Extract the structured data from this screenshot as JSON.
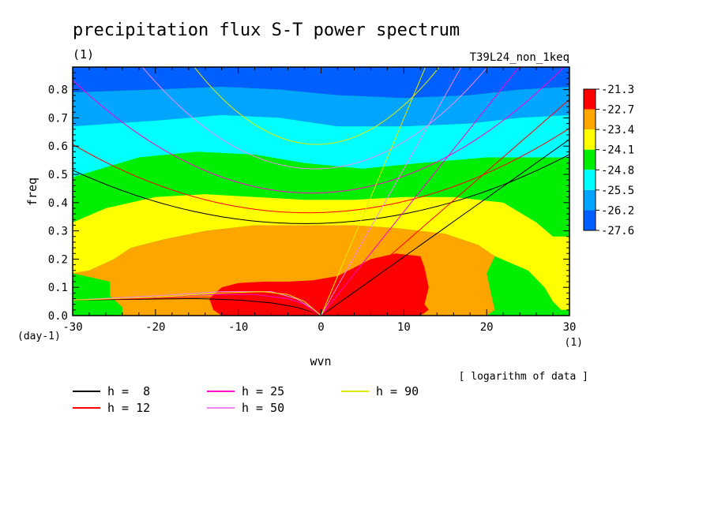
{
  "chart_data": {
    "type": "heatmap",
    "title": "precipitation flux S-T power spectrum",
    "subtitle_left": "(1)",
    "subtitle_right": "T39L24_non_1keq",
    "xlabel": "wvn",
    "ylabel": "freq",
    "x_unit": "(1)",
    "y_unit": "(day-1)",
    "xlim": [
      -30,
      30
    ],
    "ylim": [
      0,
      0.88
    ],
    "x_ticks": [
      -30,
      -20,
      -10,
      0,
      10,
      20,
      30
    ],
    "x_tick_labels": [
      "-30",
      "-20",
      "-10",
      "0",
      "10",
      "20",
      "30"
    ],
    "y_ticks": [
      0,
      0.1,
      0.2,
      0.3,
      0.4,
      0.5,
      0.6,
      0.7,
      0.8
    ],
    "y_tick_labels": [
      "0.0",
      "0.1",
      "0.2",
      "0.3",
      "0.4",
      "0.5",
      "0.6",
      "0.7",
      "0.8"
    ],
    "colorbar": {
      "labels": [
        "-21.3",
        "-22.7",
        "-23.4",
        "-24.1",
        "-24.8",
        "-25.5",
        "-26.2",
        "-27.6"
      ],
      "colors": [
        "#ff0000",
        "#ffa500",
        "#ffff00",
        "#00ee00",
        "#00ffff",
        "#00a5ff",
        "#0060ff"
      ],
      "caption": "[ logarithm of data ]"
    },
    "contour_levels": [
      {
        "value": "-26.2",
        "color": "#0060ff",
        "points": [
          [
            -30,
            0.88
          ],
          [
            30,
            0.88
          ],
          [
            30,
            0.81
          ],
          [
            24,
            0.8
          ],
          [
            18,
            0.78
          ],
          [
            10,
            0.77
          ],
          [
            2,
            0.78
          ],
          [
            -5,
            0.8
          ],
          [
            -12,
            0.81
          ],
          [
            -20,
            0.8
          ],
          [
            -30,
            0.79
          ]
        ]
      },
      {
        "value": "-25.5",
        "color": "#00a5ff",
        "points": [
          [
            -30,
            0.79
          ],
          [
            -20,
            0.8
          ],
          [
            -12,
            0.81
          ],
          [
            -5,
            0.8
          ],
          [
            2,
            0.78
          ],
          [
            10,
            0.77
          ],
          [
            18,
            0.78
          ],
          [
            24,
            0.8
          ],
          [
            30,
            0.81
          ],
          [
            30,
            0.71
          ],
          [
            24,
            0.7
          ],
          [
            18,
            0.68
          ],
          [
            10,
            0.67
          ],
          [
            2,
            0.67
          ],
          [
            -5,
            0.7
          ],
          [
            -12,
            0.71
          ],
          [
            -20,
            0.69
          ],
          [
            -30,
            0.67
          ]
        ]
      },
      {
        "value": "-24.8",
        "color": "#00ffff",
        "points": [
          [
            -30,
            0.67
          ],
          [
            -20,
            0.69
          ],
          [
            -12,
            0.71
          ],
          [
            -5,
            0.7
          ],
          [
            2,
            0.67
          ],
          [
            10,
            0.67
          ],
          [
            18,
            0.68
          ],
          [
            24,
            0.7
          ],
          [
            30,
            0.71
          ],
          [
            30,
            0.56
          ],
          [
            25,
            0.56
          ],
          [
            20,
            0.56
          ],
          [
            12,
            0.54
          ],
          [
            5,
            0.52
          ],
          [
            -2,
            0.54
          ],
          [
            -8,
            0.57
          ],
          [
            -15,
            0.58
          ],
          [
            -22,
            0.56
          ],
          [
            -30,
            0.49
          ]
        ]
      },
      {
        "value": "-24.1",
        "color": "#00ee00",
        "points": [
          [
            -30,
            0.49
          ],
          [
            -22,
            0.56
          ],
          [
            -15,
            0.58
          ],
          [
            -8,
            0.57
          ],
          [
            -2,
            0.54
          ],
          [
            5,
            0.52
          ],
          [
            12,
            0.54
          ],
          [
            20,
            0.56
          ],
          [
            25,
            0.56
          ],
          [
            30,
            0.56
          ],
          [
            30,
            0.28
          ],
          [
            28,
            0.28
          ],
          [
            26,
            0.33
          ],
          [
            22,
            0.4
          ],
          [
            16,
            0.42
          ],
          [
            10,
            0.42
          ],
          [
            4,
            0.41
          ],
          [
            -2,
            0.41
          ],
          [
            -8,
            0.42
          ],
          [
            -14,
            0.43
          ],
          [
            -20,
            0.42
          ],
          [
            -26,
            0.38
          ],
          [
            -30,
            0.33
          ]
        ]
      },
      {
        "value": "-23.4",
        "color": "#ffff00",
        "points": [
          [
            -30,
            0.33
          ],
          [
            -26,
            0.38
          ],
          [
            -20,
            0.42
          ],
          [
            -14,
            0.43
          ],
          [
            -8,
            0.42
          ],
          [
            -2,
            0.41
          ],
          [
            4,
            0.41
          ],
          [
            10,
            0.42
          ],
          [
            16,
            0.42
          ],
          [
            22,
            0.4
          ],
          [
            26,
            0.33
          ],
          [
            28,
            0.28
          ],
          [
            30,
            0.28
          ],
          [
            30,
            0.02
          ],
          [
            29,
            0.02
          ],
          [
            28,
            0.05
          ],
          [
            27,
            0.1
          ],
          [
            25,
            0.16
          ],
          [
            21,
            0.21
          ],
          [
            19,
            0.25
          ],
          [
            15,
            0.29
          ],
          [
            9,
            0.31
          ],
          [
            4,
            0.32
          ],
          [
            -2,
            0.32
          ],
          [
            -8,
            0.32
          ],
          [
            -14,
            0.3
          ],
          [
            -19,
            0.27
          ],
          [
            -23,
            0.24
          ],
          [
            -25,
            0.2
          ],
          [
            -28,
            0.16
          ],
          [
            -30,
            0.15
          ]
        ]
      },
      {
        "value": "-22.7",
        "color": "#ffa500",
        "points": [
          [
            -30,
            0.15
          ],
          [
            -28,
            0.16
          ],
          [
            -25,
            0.2
          ],
          [
            -23,
            0.24
          ],
          [
            -19,
            0.27
          ],
          [
            -14,
            0.3
          ],
          [
            -8,
            0.32
          ],
          [
            -2,
            0.32
          ],
          [
            4,
            0.32
          ],
          [
            9,
            0.31
          ],
          [
            15,
            0.29
          ],
          [
            19,
            0.25
          ],
          [
            21,
            0.21
          ],
          [
            20,
            0.15
          ],
          [
            20.5,
            0.08
          ],
          [
            21,
            0.02
          ],
          [
            20,
            0
          ],
          [
            -24,
            0
          ],
          [
            -24,
            0.03
          ],
          [
            -25.5,
            0.07
          ],
          [
            -25.5,
            0.12
          ]
        ]
      },
      {
        "value": "-21.3",
        "color": "#ff0000",
        "points": [
          [
            -13,
            0.02
          ],
          [
            -13.5,
            0.06
          ],
          [
            -12,
            0.1
          ],
          [
            -10,
            0.115
          ],
          [
            -7,
            0.12
          ],
          [
            -4,
            0.12
          ],
          [
            -1,
            0.125
          ],
          [
            2,
            0.14
          ],
          [
            4,
            0.17
          ],
          [
            6,
            0.2
          ],
          [
            9,
            0.22
          ],
          [
            12,
            0.21
          ],
          [
            12.5,
            0.17
          ],
          [
            13,
            0.1
          ],
          [
            12.5,
            0.04
          ],
          [
            13,
            0.02
          ],
          [
            12,
            0
          ],
          [
            -12,
            0
          ]
        ]
      }
    ],
    "series": [
      {
        "name": "h =  8",
        "color": "#000000",
        "kelvin_slope": 0.0208,
        "mrg": {
          "a": 0.3267,
          "b": 0.00093,
          "c": 0.00024
        },
        "rossby": [
          [
            -30,
            0.055
          ],
          [
            -22,
            0.058
          ],
          [
            -15,
            0.06
          ],
          [
            -10,
            0.055
          ],
          [
            -6,
            0.045
          ],
          [
            -3,
            0.03
          ],
          [
            -1,
            0.012
          ],
          [
            0,
            0
          ]
        ]
      },
      {
        "name": "h = 12",
        "color": "#ff0000",
        "kelvin_slope": 0.0255,
        "mrg": {
          "a": 0.3649,
          "b": 0.00095,
          "c": 0.0003
        },
        "rossby": [
          [
            -30,
            0.055
          ],
          [
            -22,
            0.06
          ],
          [
            -15,
            0.065
          ],
          [
            -10,
            0.065
          ],
          [
            -6,
            0.055
          ],
          [
            -3,
            0.035
          ],
          [
            -1,
            0.013
          ],
          [
            0,
            0
          ]
        ]
      },
      {
        "name": "h = 25",
        "color": "#ff00cc",
        "kelvin_slope": 0.0368,
        "mrg": {
          "a": 0.4347,
          "b": 0.0011,
          "c": 0.00048
        },
        "rossby": [
          [
            -30,
            0.055
          ],
          [
            -20,
            0.065
          ],
          [
            -13,
            0.075
          ],
          [
            -8,
            0.075
          ],
          [
            -4,
            0.06
          ],
          [
            -2,
            0.04
          ],
          [
            0,
            0
          ]
        ]
      },
      {
        "name": "h = 50",
        "color": "#ee88ee",
        "kelvin_slope": 0.052,
        "mrg": {
          "a": 0.5201,
          "b": 0.00123,
          "c": 0.00083
        },
        "rossby": [
          [
            -30,
            0.055
          ],
          [
            -20,
            0.07
          ],
          [
            -12,
            0.085
          ],
          [
            -6,
            0.085
          ],
          [
            -3,
            0.06
          ],
          [
            -1,
            0.025
          ],
          [
            0,
            0
          ]
        ]
      },
      {
        "name": "h = 90",
        "color": "#e8e800",
        "kelvin_slope": 0.0698,
        "mrg": {
          "a": 0.6066,
          "b": 0.00131,
          "c": 0.00125
        },
        "rossby": [
          [
            -30,
            0.055
          ],
          [
            -20,
            0.065
          ],
          [
            -12,
            0.08
          ],
          [
            -7,
            0.085
          ],
          [
            -4,
            0.075
          ],
          [
            -2,
            0.05
          ],
          [
            0,
            0
          ]
        ]
      }
    ],
    "legend_placement": "bottom-left, below plot"
  }
}
